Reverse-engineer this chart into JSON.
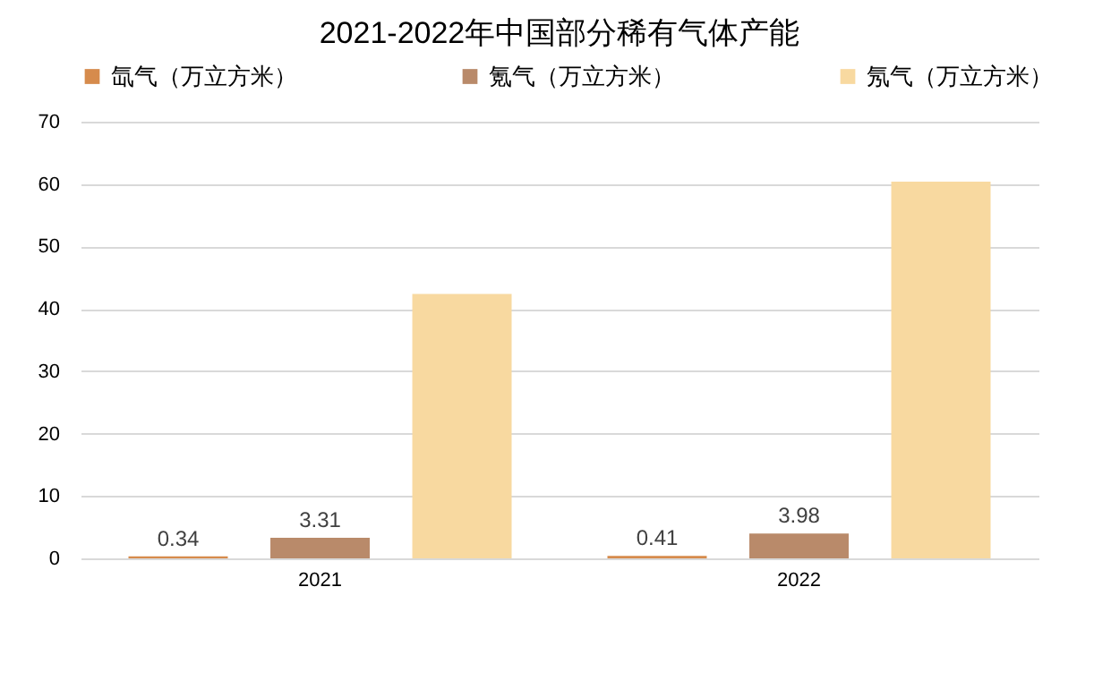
{
  "chart_data": {
    "type": "bar",
    "title": "2021-2022年中国部分稀有气体产能",
    "categories": [
      "2021",
      "2022"
    ],
    "series": [
      {
        "name": "氙气（万立方米）",
        "color": "#d68b4c",
        "values": [
          0.34,
          0.41
        ],
        "value_labels": [
          "0.34",
          "0.41"
        ]
      },
      {
        "name": "氪气（万立方米）",
        "color": "#b98a6a",
        "values": [
          3.31,
          3.98
        ],
        "value_labels": [
          "3.31",
          "3.98"
        ]
      },
      {
        "name": "氖气（万立方米）",
        "color": "#f8d9a0",
        "values": [
          42.4,
          60.4
        ],
        "value_labels": [
          null,
          null
        ]
      }
    ],
    "ylim": [
      0,
      70
    ],
    "yticks": [
      0,
      10,
      20,
      30,
      40,
      50,
      60,
      70
    ],
    "grid": "y",
    "legend": "top"
  }
}
